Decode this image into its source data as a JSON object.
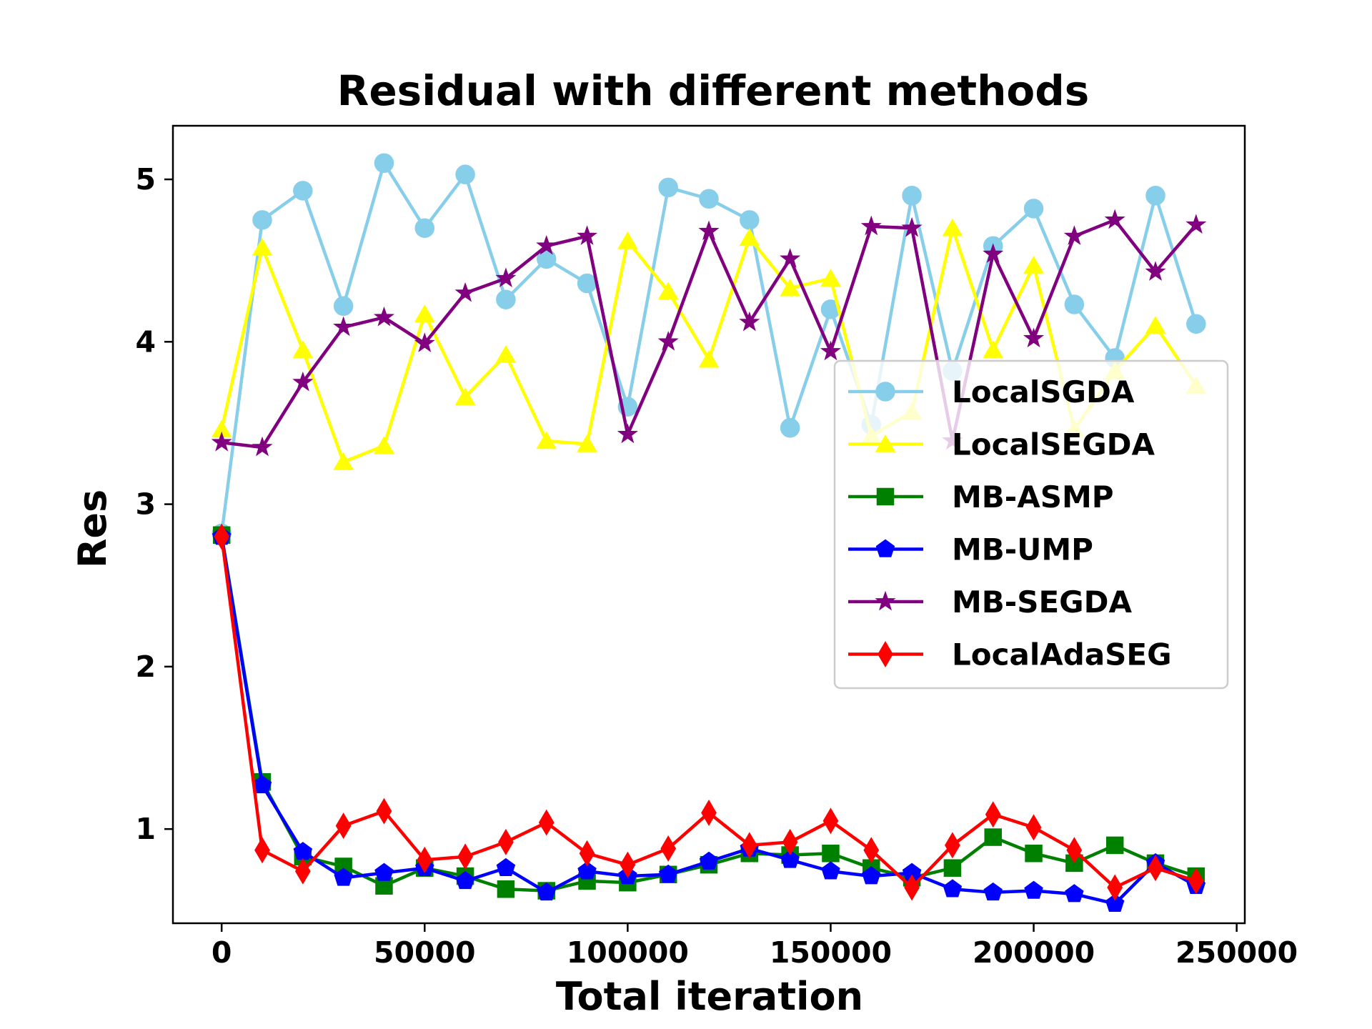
{
  "chart_data": {
    "type": "line",
    "title": "Residual with different methods",
    "xlabel": "Total iteration",
    "ylabel": "Res",
    "xlim": [
      -12000,
      252000
    ],
    "ylim": [
      0.42,
      5.33
    ],
    "xticks": [
      0,
      50000,
      100000,
      150000,
      200000,
      250000
    ],
    "xtick_labels": [
      "0",
      "50000",
      "100000",
      "150000",
      "200000",
      "250000"
    ],
    "yticks": [
      1,
      2,
      3,
      4,
      5
    ],
    "ytick_labels": [
      "1",
      "2",
      "3",
      "4",
      "5"
    ],
    "legend_position": "center-right",
    "x": [
      0,
      10000,
      20000,
      30000,
      40000,
      50000,
      60000,
      70000,
      80000,
      90000,
      100000,
      110000,
      120000,
      130000,
      140000,
      150000,
      160000,
      170000,
      180000,
      190000,
      200000,
      210000,
      220000,
      230000,
      240000
    ],
    "series": [
      {
        "name": "LocalSGDA",
        "color": "#87ceeb",
        "marker": "circle",
        "values": [
          2.82,
          4.75,
          4.93,
          4.22,
          5.1,
          4.7,
          5.03,
          4.26,
          4.51,
          4.36,
          3.6,
          4.95,
          4.88,
          4.75,
          3.47,
          4.2,
          3.49,
          4.9,
          3.82,
          4.59,
          4.82,
          4.23,
          3.9,
          4.9,
          4.11
        ]
      },
      {
        "name": "LocalSEGDA",
        "color": "#ffff00",
        "marker": "triangle",
        "values": [
          3.46,
          4.58,
          3.95,
          3.26,
          3.36,
          4.17,
          3.66,
          3.92,
          3.39,
          3.37,
          4.62,
          4.31,
          3.89,
          4.64,
          4.33,
          4.39,
          3.42,
          3.57,
          4.7,
          3.95,
          4.47,
          3.46,
          3.82,
          4.1,
          3.73
        ]
      },
      {
        "name": "MB-ASMP",
        "color": "#008000",
        "marker": "square",
        "values": [
          2.81,
          1.29,
          0.83,
          0.77,
          0.65,
          0.76,
          0.71,
          0.63,
          0.62,
          0.68,
          0.67,
          0.72,
          0.78,
          0.85,
          0.84,
          0.85,
          0.76,
          0.7,
          0.76,
          0.95,
          0.85,
          0.79,
          0.9,
          0.79,
          0.71
        ]
      },
      {
        "name": "MB-UMP",
        "color": "#0000ff",
        "marker": "pentagon",
        "values": [
          2.8,
          1.27,
          0.86,
          0.7,
          0.73,
          0.76,
          0.68,
          0.76,
          0.61,
          0.74,
          0.71,
          0.72,
          0.8,
          0.88,
          0.81,
          0.74,
          0.71,
          0.73,
          0.63,
          0.61,
          0.62,
          0.6,
          0.54,
          0.79,
          0.65
        ]
      },
      {
        "name": "MB-SEGDA",
        "color": "#800080",
        "marker": "star",
        "values": [
          3.38,
          3.35,
          3.75,
          4.09,
          4.15,
          3.99,
          4.3,
          4.39,
          4.59,
          4.65,
          3.43,
          4.0,
          4.68,
          4.12,
          4.51,
          3.94,
          4.71,
          4.7,
          3.39,
          4.54,
          4.02,
          4.65,
          4.75,
          4.43,
          4.72
        ]
      },
      {
        "name": "LocalAdaSEG",
        "color": "#ff0000",
        "marker": "diamond",
        "values": [
          2.8,
          0.87,
          0.74,
          1.02,
          1.11,
          0.81,
          0.83,
          0.92,
          1.04,
          0.85,
          0.78,
          0.88,
          1.1,
          0.9,
          0.92,
          1.05,
          0.87,
          0.64,
          0.9,
          1.09,
          1.01,
          0.87,
          0.64,
          0.76,
          0.68
        ]
      }
    ]
  }
}
